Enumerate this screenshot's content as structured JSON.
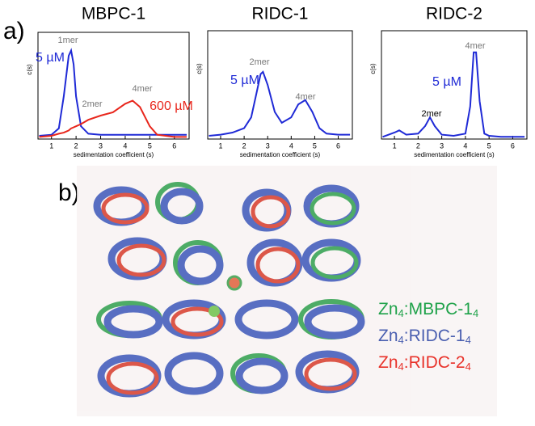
{
  "panel_a_label": "a)",
  "panel_b_label": "b)",
  "chart_data": [
    {
      "type": "line",
      "title": "MBPC-1",
      "x_label": "sedimentation coefficient (s)",
      "y_label": "c(s)",
      "x": [
        0.5,
        1.0,
        1.3,
        1.5,
        1.7,
        1.8,
        1.9,
        2.0,
        2.2,
        2.5,
        3.0,
        3.5,
        4.0,
        4.3,
        4.6,
        5.0,
        5.3,
        6.0,
        6.5
      ],
      "series": [
        {
          "name": "5 µM",
          "color": "#1f2ad6",
          "values": [
            0.03,
            0.04,
            0.1,
            0.4,
            0.78,
            0.83,
            0.7,
            0.4,
            0.12,
            0.05,
            0.04,
            0.04,
            0.04,
            0.04,
            0.04,
            0.04,
            0.04,
            0.04,
            0.04
          ]
        },
        {
          "name": "600 µM",
          "color": "#e8261c",
          "values": [
            0.02,
            0.03,
            0.05,
            0.06,
            0.08,
            0.1,
            0.11,
            0.12,
            0.14,
            0.18,
            0.22,
            0.25,
            0.33,
            0.36,
            0.3,
            0.12,
            0.04,
            0.02,
            0.02
          ]
        }
      ],
      "annotations": [
        "1mer",
        "2mer",
        "4mer"
      ],
      "xlim": [
        0.45,
        6.6
      ],
      "ylim": [
        0,
        1
      ],
      "xticks": [
        1,
        2,
        3,
        4,
        5,
        6
      ]
    },
    {
      "type": "line",
      "title": "RIDC-1",
      "x_label": "sedimentation coefficient (s)",
      "y_label": "c(s)",
      "x": [
        0.5,
        1.0,
        1.5,
        2.0,
        2.3,
        2.5,
        2.7,
        2.8,
        3.0,
        3.3,
        3.6,
        4.0,
        4.3,
        4.6,
        4.9,
        5.2,
        5.5,
        6.0,
        6.5
      ],
      "series": [
        {
          "name": "5 µM",
          "color": "#1f2ad6",
          "values": [
            0.03,
            0.04,
            0.06,
            0.1,
            0.2,
            0.4,
            0.6,
            0.62,
            0.5,
            0.25,
            0.15,
            0.2,
            0.32,
            0.36,
            0.25,
            0.1,
            0.05,
            0.04,
            0.04
          ]
        }
      ],
      "annotations": [
        "2mer",
        "4mer"
      ],
      "xlim": [
        0.45,
        6.6
      ],
      "ylim": [
        0,
        1
      ],
      "xticks": [
        1,
        2,
        3,
        4,
        5,
        6
      ]
    },
    {
      "type": "line",
      "title": "RIDC-2",
      "x_label": "sedimentation coefficient (s)",
      "y_label": "c(s)",
      "x": [
        0.5,
        1.0,
        1.2,
        1.5,
        2.0,
        2.3,
        2.5,
        2.7,
        3.0,
        3.5,
        4.0,
        4.2,
        4.35,
        4.45,
        4.6,
        4.8,
        5.0,
        5.5,
        6.0,
        6.5
      ],
      "series": [
        {
          "name": "5 µM",
          "color": "#1f2ad6",
          "values": [
            0.02,
            0.06,
            0.08,
            0.04,
            0.05,
            0.12,
            0.2,
            0.12,
            0.04,
            0.03,
            0.05,
            0.3,
            0.8,
            0.8,
            0.35,
            0.05,
            0.03,
            0.02,
            0.02,
            0.02
          ]
        }
      ],
      "annotations": [
        "4mer",
        "2mer"
      ],
      "xlim": [
        0.45,
        6.6
      ],
      "ylim": [
        0,
        1
      ],
      "xticks": [
        1,
        2,
        3,
        4,
        5,
        6
      ]
    }
  ],
  "structure_legend": [
    {
      "color": "#1fa24a",
      "parts": [
        "Zn",
        "4",
        ":MBPC-1",
        "4"
      ]
    },
    {
      "color": "#4a5fb0",
      "parts": [
        "Zn",
        "4",
        ":RIDC-1",
        "4"
      ]
    },
    {
      "color": "#e8322a",
      "parts": [
        "Zn",
        "4",
        ":RIDC-2",
        "4"
      ]
    }
  ]
}
